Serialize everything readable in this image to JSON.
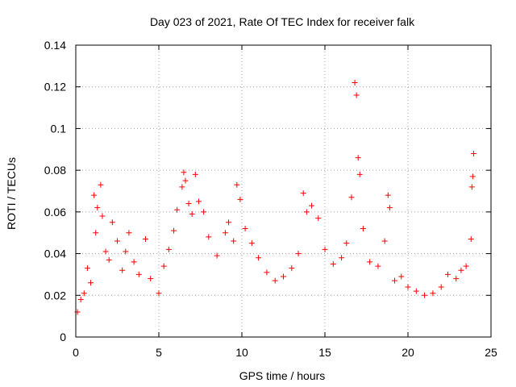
{
  "chart_data": {
    "type": "scatter",
    "title": "Day 023 of 2021, Rate Of TEC Index for receiver falk",
    "xlabel": "GPS time / hours",
    "ylabel": "ROTI / TECUs",
    "xlim": [
      0,
      25
    ],
    "ylim": [
      0,
      0.14
    ],
    "xticks": [
      0,
      5,
      10,
      15,
      20,
      25
    ],
    "yticks": [
      0,
      0.02,
      0.04,
      0.06,
      0.08,
      0.1,
      0.12,
      0.14
    ],
    "xtick_labels": [
      "0",
      "5",
      "10",
      "15",
      "20",
      "25"
    ],
    "ytick_labels": [
      "0",
      "0.02",
      "0.04",
      "0.06",
      "0.08",
      "0.1",
      "0.12",
      "0.14"
    ],
    "grid": true,
    "marker": "+",
    "color": "#ff0000",
    "series": [
      {
        "points": [
          [
            0.1,
            0.012
          ],
          [
            0.3,
            0.018
          ],
          [
            0.5,
            0.021
          ],
          [
            0.7,
            0.033
          ],
          [
            0.9,
            0.026
          ],
          [
            1.1,
            0.068
          ],
          [
            1.2,
            0.05
          ],
          [
            1.3,
            0.062
          ],
          [
            1.5,
            0.073
          ],
          [
            1.6,
            0.058
          ],
          [
            1.8,
            0.041
          ],
          [
            2.0,
            0.037
          ],
          [
            2.2,
            0.055
          ],
          [
            2.5,
            0.046
          ],
          [
            2.8,
            0.032
          ],
          [
            3.0,
            0.041
          ],
          [
            3.2,
            0.05
          ],
          [
            3.5,
            0.036
          ],
          [
            3.8,
            0.03
          ],
          [
            4.2,
            0.047
          ],
          [
            4.5,
            0.028
          ],
          [
            5.0,
            0.021
          ],
          [
            5.3,
            0.034
          ],
          [
            5.6,
            0.042
          ],
          [
            5.9,
            0.051
          ],
          [
            6.1,
            0.061
          ],
          [
            6.4,
            0.072
          ],
          [
            6.5,
            0.079
          ],
          [
            6.6,
            0.075
          ],
          [
            6.8,
            0.064
          ],
          [
            7.0,
            0.059
          ],
          [
            7.2,
            0.078
          ],
          [
            7.4,
            0.065
          ],
          [
            7.7,
            0.06
          ],
          [
            8.0,
            0.048
          ],
          [
            8.5,
            0.039
          ],
          [
            9.0,
            0.05
          ],
          [
            9.2,
            0.055
          ],
          [
            9.5,
            0.046
          ],
          [
            9.7,
            0.073
          ],
          [
            9.9,
            0.066
          ],
          [
            10.2,
            0.052
          ],
          [
            10.6,
            0.045
          ],
          [
            11.0,
            0.038
          ],
          [
            11.5,
            0.031
          ],
          [
            12.0,
            0.027
          ],
          [
            12.5,
            0.029
          ],
          [
            13.0,
            0.033
          ],
          [
            13.4,
            0.04
          ],
          [
            13.7,
            0.069
          ],
          [
            13.9,
            0.06
          ],
          [
            14.2,
            0.063
          ],
          [
            14.6,
            0.057
          ],
          [
            15.0,
            0.042
          ],
          [
            15.5,
            0.035
          ],
          [
            16.0,
            0.038
          ],
          [
            16.3,
            0.045
          ],
          [
            16.6,
            0.067
          ],
          [
            16.8,
            0.122
          ],
          [
            16.9,
            0.116
          ],
          [
            17.0,
            0.086
          ],
          [
            17.1,
            0.078
          ],
          [
            17.3,
            0.052
          ],
          [
            17.7,
            0.036
          ],
          [
            18.2,
            0.034
          ],
          [
            18.6,
            0.046
          ],
          [
            18.8,
            0.068
          ],
          [
            18.9,
            0.062
          ],
          [
            19.2,
            0.027
          ],
          [
            19.6,
            0.029
          ],
          [
            20.0,
            0.024
          ],
          [
            20.5,
            0.022
          ],
          [
            21.0,
            0.02
          ],
          [
            21.5,
            0.021
          ],
          [
            22.0,
            0.024
          ],
          [
            22.4,
            0.03
          ],
          [
            22.9,
            0.028
          ],
          [
            23.2,
            0.032
          ],
          [
            23.5,
            0.034
          ],
          [
            23.8,
            0.047
          ],
          [
            23.85,
            0.072
          ],
          [
            23.9,
            0.077
          ],
          [
            23.95,
            0.088
          ]
        ]
      }
    ]
  }
}
